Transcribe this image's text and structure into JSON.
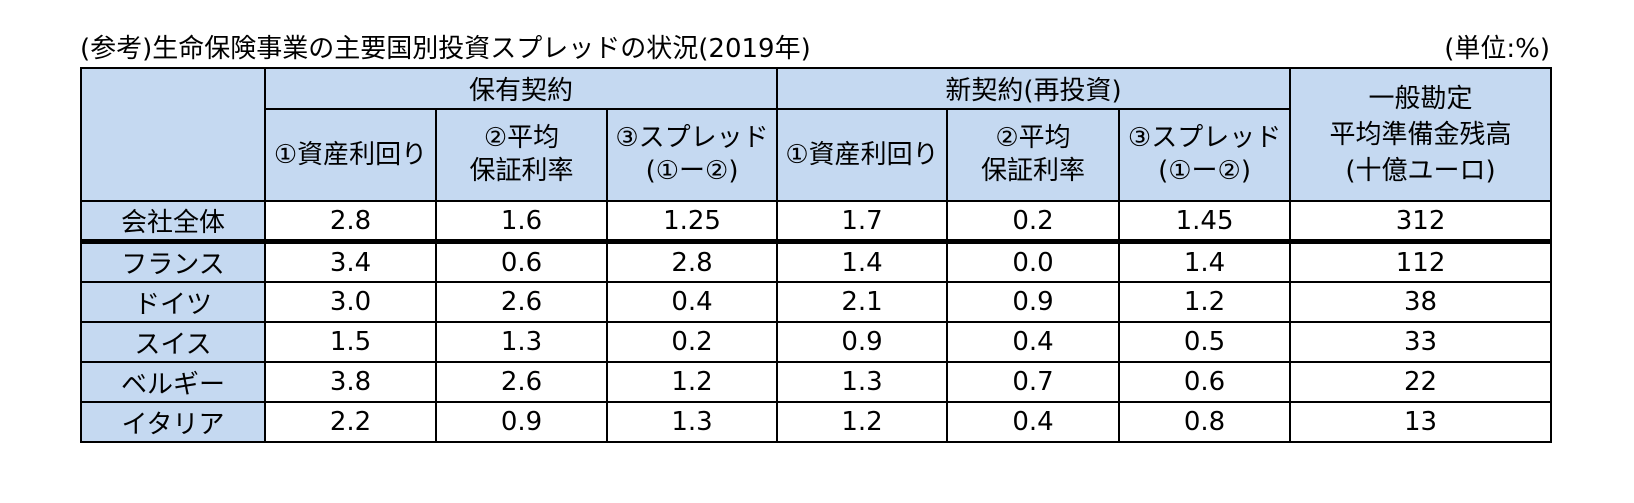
{
  "caption": {
    "title": "(参考)生命保険事業の主要国別投資スプレッドの状況(2019年)",
    "unit": "(単位:%)"
  },
  "header": {
    "holding_group": "保有契約",
    "new_group": "新契約(再投資)",
    "general_line1": "一般勘定",
    "general_line2": "平均準備金残高",
    "general_line3": "(十億ユーロ)",
    "col_yield": "①資産利回り",
    "col_guarantee_l1": "②平均",
    "col_guarantee_l2": "保証利率",
    "col_spread_l1": "③スプレッド",
    "col_spread_l2": "(①ー②)"
  },
  "rows": [
    {
      "label": "会社全体",
      "h_yield": "2.8",
      "h_guar": "1.6",
      "h_spread": "1.25",
      "n_yield": "1.7",
      "n_guar": "0.2",
      "n_spread": "1.45",
      "reserve": "312"
    },
    {
      "label": "フランス",
      "h_yield": "3.4",
      "h_guar": "0.6",
      "h_spread": "2.8",
      "n_yield": "1.4",
      "n_guar": "0.0",
      "n_spread": "1.4",
      "reserve": "112"
    },
    {
      "label": "ドイツ",
      "h_yield": "3.0",
      "h_guar": "2.6",
      "h_spread": "0.4",
      "n_yield": "2.1",
      "n_guar": "0.9",
      "n_spread": "1.2",
      "reserve": "38"
    },
    {
      "label": "スイス",
      "h_yield": "1.5",
      "h_guar": "1.3",
      "h_spread": "0.2",
      "n_yield": "0.9",
      "n_guar": "0.4",
      "n_spread": "0.5",
      "reserve": "33"
    },
    {
      "label": "ベルギー",
      "h_yield": "3.8",
      "h_guar": "2.6",
      "h_spread": "1.2",
      "n_yield": "1.3",
      "n_guar": "0.7",
      "n_spread": "0.6",
      "reserve": "22"
    },
    {
      "label": "イタリア",
      "h_yield": "2.2",
      "h_guar": "0.9",
      "h_spread": "1.3",
      "n_yield": "1.2",
      "n_guar": "0.4",
      "n_spread": "0.8",
      "reserve": "13"
    }
  ],
  "colors": {
    "header_fill": "#c5d9f1",
    "border": "#000000",
    "cell_fill": "#ffffff"
  }
}
